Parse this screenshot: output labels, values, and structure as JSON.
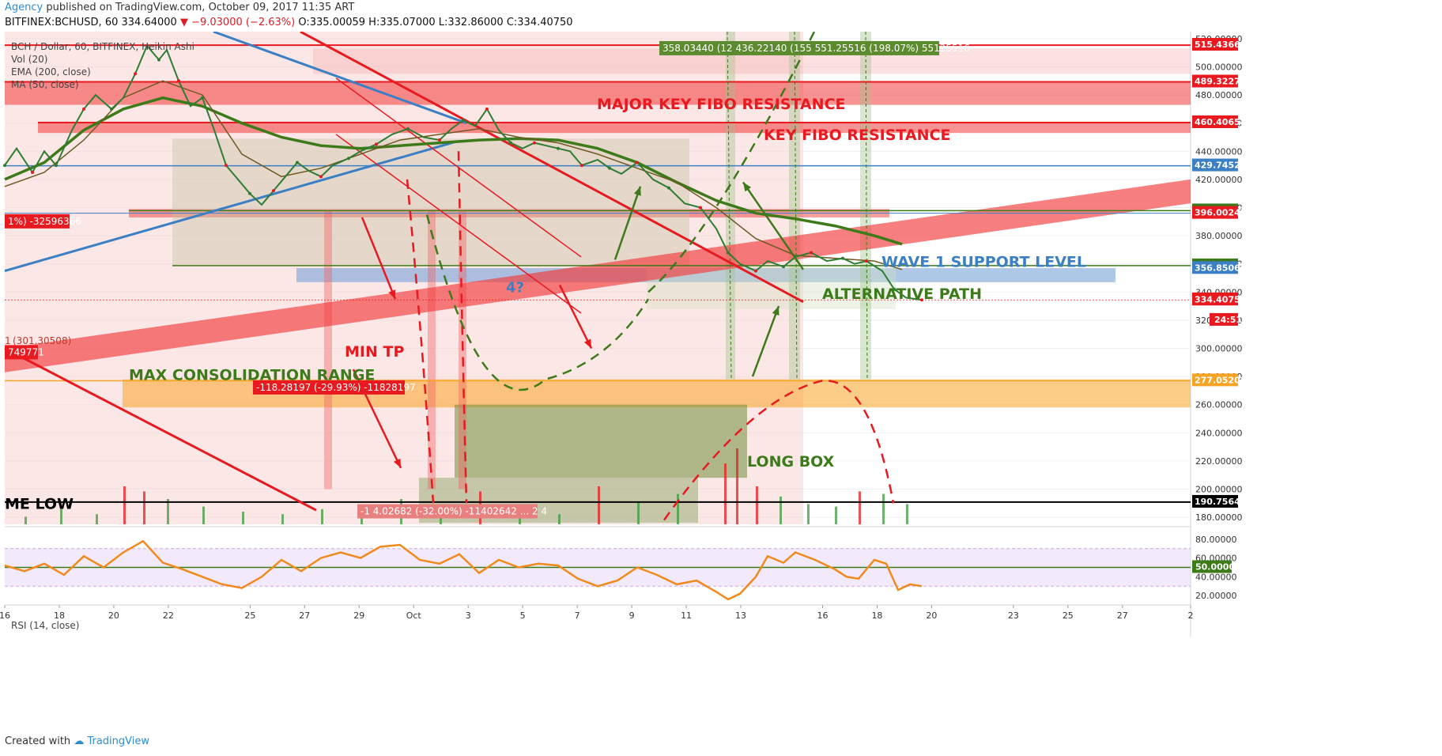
{
  "header": {
    "agency": "Agency",
    "published": "published on TradingView.com, October 09, 2017 11:35 ART",
    "symbol": "BITFINEX:BCHUSD, 60",
    "price": "334.64000",
    "change": "−9.03000 (−2.63%)",
    "ohlc": "O:335.00059 H:335.07000 L:332.86000 C:334.40750"
  },
  "legend": {
    "title": "BCH / Dollar, 60, BITFINEX, Heikin Ashi",
    "vol": "Vol (20)",
    "ema": "EMA (200, close)",
    "ma": "MA (50, close)",
    "rsi": "RSI (14, close)"
  },
  "footer": {
    "created": "Created with",
    "brand": "TradingView"
  },
  "colors": {
    "red": "#e8191f",
    "green": "#3c7a1a",
    "blue": "#3b7fc4",
    "orange": "#f7a425",
    "rsi": "#f08a1c"
  },
  "chart_data": {
    "type": "line",
    "title": "BCH / Dollar, 60, BITFINEX, Heikin Ashi",
    "ylim": [
      175,
      525
    ],
    "y_ticks": [
      "180.00000",
      "200.00000",
      "220.00000",
      "240.00000",
      "260.00000",
      "280.00000",
      "300.00000",
      "320.00000",
      "340.00000",
      "360.00000",
      "380.00000",
      "400.00000",
      "420.00000",
      "440.00000",
      "460.00000",
      "480.00000",
      "500.00000",
      "520.00000"
    ],
    "x_ticks": [
      "16",
      "18",
      "20",
      "22",
      "25",
      "27",
      "29",
      "Oct",
      "3",
      "5",
      "7",
      "9",
      "11",
      "13",
      "16",
      "18",
      "20",
      "23",
      "25",
      "27",
      "2"
    ],
    "rsi_ticks": [
      "80.00000",
      "60.00000",
      "40.00000",
      "20.00000"
    ],
    "price_labels": [
      {
        "v": 515.43664,
        "t": "515.43664",
        "c": "#e8191f"
      },
      {
        "v": 489.32271,
        "t": "489.32271",
        "c": "#e8191f"
      },
      {
        "v": 460.40658,
        "t": "460.40658",
        "c": "#e8191f"
      },
      {
        "v": 429.7452,
        "t": "429.74520",
        "c": "#3b7fc4"
      },
      {
        "v": 397.79662,
        "t": "397.79662",
        "c": "#3c7a1a"
      },
      {
        "v": 396.00247,
        "t": "396.00247",
        "c": "#e8191f"
      },
      {
        "v": 358.77166,
        "t": "358.77166",
        "c": "#3c7a1a"
      },
      {
        "v": 356.85065,
        "t": "356.85065",
        "c": "#3b7fc4"
      },
      {
        "v": 334.64,
        "t": "334.64000",
        "c": "#e8191f"
      },
      {
        "v": 334.4075,
        "t": "334.40750",
        "c": "#e8191f"
      },
      {
        "v": 277.05202,
        "t": "277.05202",
        "c": "#f7a425"
      },
      {
        "v": 190.75646,
        "t": "190.75646",
        "c": "#000000"
      }
    ],
    "countdown": "24:51",
    "rsi_mid_label": "50.0000",
    "price": [
      {
        "x": 16.0,
        "y": 430
      },
      {
        "x": 16.3,
        "y": 442
      },
      {
        "x": 16.7,
        "y": 425
      },
      {
        "x": 17.0,
        "y": 440
      },
      {
        "x": 17.3,
        "y": 430
      },
      {
        "x": 17.7,
        "y": 455
      },
      {
        "x": 18.0,
        "y": 470
      },
      {
        "x": 18.3,
        "y": 480
      },
      {
        "x": 18.7,
        "y": 470
      },
      {
        "x": 19.0,
        "y": 478
      },
      {
        "x": 19.3,
        "y": 495
      },
      {
        "x": 19.6,
        "y": 515
      },
      {
        "x": 19.9,
        "y": 505
      },
      {
        "x": 20.1,
        "y": 512
      },
      {
        "x": 20.4,
        "y": 490
      },
      {
        "x": 20.7,
        "y": 472
      },
      {
        "x": 21.0,
        "y": 478
      },
      {
        "x": 21.3,
        "y": 455
      },
      {
        "x": 21.6,
        "y": 430
      },
      {
        "x": 21.9,
        "y": 420
      },
      {
        "x": 22.2,
        "y": 410
      },
      {
        "x": 22.5,
        "y": 402
      },
      {
        "x": 22.8,
        "y": 412
      },
      {
        "x": 23.1,
        "y": 422
      },
      {
        "x": 23.4,
        "y": 432
      },
      {
        "x": 23.7,
        "y": 426
      },
      {
        "x": 24.0,
        "y": 422
      },
      {
        "x": 24.3,
        "y": 430
      },
      {
        "x": 24.7,
        "y": 435
      },
      {
        "x": 25.0,
        "y": 440
      },
      {
        "x": 25.4,
        "y": 445
      },
      {
        "x": 25.8,
        "y": 452
      },
      {
        "x": 26.2,
        "y": 456
      },
      {
        "x": 26.6,
        "y": 450
      },
      {
        "x": 27.0,
        "y": 448
      },
      {
        "x": 27.3,
        "y": 456
      },
      {
        "x": 27.6,
        "y": 462
      },
      {
        "x": 27.9,
        "y": 458
      },
      {
        "x": 28.2,
        "y": 470
      },
      {
        "x": 28.5,
        "y": 455
      },
      {
        "x": 28.8,
        "y": 446
      },
      {
        "x": 29.1,
        "y": 442
      },
      {
        "x": 29.4,
        "y": 446
      },
      {
        "x": 29.7,
        "y": 444
      },
      {
        "x": 30.0,
        "y": 442
      },
      {
        "x": 30.3,
        "y": 440
      },
      {
        "x": 30.6,
        "y": 430
      },
      {
        "x": 31.0,
        "y": 434
      },
      {
        "x": 31.3,
        "y": 428
      },
      {
        "x": 31.6,
        "y": 424
      },
      {
        "x": 32.0,
        "y": 432
      },
      {
        "x": 32.4,
        "y": 420
      },
      {
        "x": 32.8,
        "y": 414
      },
      {
        "x": 33.2,
        "y": 403
      },
      {
        "x": 33.6,
        "y": 400
      },
      {
        "x": 34.0,
        "y": 385
      },
      {
        "x": 34.3,
        "y": 368
      },
      {
        "x": 34.6,
        "y": 360
      },
      {
        "x": 35.0,
        "y": 355
      },
      {
        "x": 35.3,
        "y": 362
      },
      {
        "x": 35.7,
        "y": 358
      },
      {
        "x": 36.0,
        "y": 365
      },
      {
        "x": 36.4,
        "y": 368
      },
      {
        "x": 36.8,
        "y": 362
      },
      {
        "x": 37.2,
        "y": 364
      },
      {
        "x": 37.5,
        "y": 360
      },
      {
        "x": 37.8,
        "y": 362
      },
      {
        "x": 38.2,
        "y": 355
      },
      {
        "x": 38.5,
        "y": 342
      },
      {
        "x": 38.8,
        "y": 336
      },
      {
        "x": 39.2,
        "y": 334.4
      }
    ],
    "ema200": [
      {
        "x": 16.0,
        "y": 420
      },
      {
        "x": 17.0,
        "y": 432
      },
      {
        "x": 18.0,
        "y": 455
      },
      {
        "x": 19.0,
        "y": 470
      },
      {
        "x": 20.0,
        "y": 478
      },
      {
        "x": 21.0,
        "y": 472
      },
      {
        "x": 22.0,
        "y": 460
      },
      {
        "x": 23.0,
        "y": 450
      },
      {
        "x": 24.0,
        "y": 444
      },
      {
        "x": 25.0,
        "y": 442
      },
      {
        "x": 26.0,
        "y": 444
      },
      {
        "x": 27.0,
        "y": 446
      },
      {
        "x": 28.0,
        "y": 448
      },
      {
        "x": 29.0,
        "y": 449
      },
      {
        "x": 30.0,
        "y": 448
      },
      {
        "x": 31.0,
        "y": 442
      },
      {
        "x": 32.0,
        "y": 432
      },
      {
        "x": 33.0,
        "y": 418
      },
      {
        "x": 34.0,
        "y": 405
      },
      {
        "x": 35.0,
        "y": 396
      },
      {
        "x": 36.0,
        "y": 392
      },
      {
        "x": 37.0,
        "y": 387
      },
      {
        "x": 38.0,
        "y": 380
      },
      {
        "x": 38.7,
        "y": 374
      }
    ],
    "ma50": [
      {
        "x": 16.0,
        "y": 415
      },
      {
        "x": 17.0,
        "y": 425
      },
      {
        "x": 18.0,
        "y": 448
      },
      {
        "x": 19.0,
        "y": 478
      },
      {
        "x": 20.0,
        "y": 490
      },
      {
        "x": 21.0,
        "y": 480
      },
      {
        "x": 22.0,
        "y": 438
      },
      {
        "x": 23.0,
        "y": 422
      },
      {
        "x": 24.0,
        "y": 428
      },
      {
        "x": 25.0,
        "y": 438
      },
      {
        "x": 26.0,
        "y": 448
      },
      {
        "x": 27.0,
        "y": 452
      },
      {
        "x": 28.0,
        "y": 456
      },
      {
        "x": 29.0,
        "y": 450
      },
      {
        "x": 30.0,
        "y": 446
      },
      {
        "x": 31.0,
        "y": 438
      },
      {
        "x": 32.0,
        "y": 428
      },
      {
        "x": 33.0,
        "y": 418
      },
      {
        "x": 34.0,
        "y": 400
      },
      {
        "x": 35.0,
        "y": 378
      },
      {
        "x": 36.0,
        "y": 366
      },
      {
        "x": 37.0,
        "y": 364
      },
      {
        "x": 38.0,
        "y": 362
      },
      {
        "x": 38.7,
        "y": 356
      }
    ],
    "rsi": [
      {
        "x": 16.0,
        "y": 52
      },
      {
        "x": 16.5,
        "y": 46
      },
      {
        "x": 17.0,
        "y": 54
      },
      {
        "x": 17.5,
        "y": 42
      },
      {
        "x": 18.0,
        "y": 62
      },
      {
        "x": 18.5,
        "y": 50
      },
      {
        "x": 19.0,
        "y": 66
      },
      {
        "x": 19.5,
        "y": 78
      },
      {
        "x": 20.0,
        "y": 55
      },
      {
        "x": 20.5,
        "y": 48
      },
      {
        "x": 21.0,
        "y": 40
      },
      {
        "x": 21.5,
        "y": 32
      },
      {
        "x": 22.0,
        "y": 28
      },
      {
        "x": 22.5,
        "y": 40
      },
      {
        "x": 23.0,
        "y": 58
      },
      {
        "x": 23.5,
        "y": 46
      },
      {
        "x": 24.0,
        "y": 60
      },
      {
        "x": 24.5,
        "y": 66
      },
      {
        "x": 25.0,
        "y": 60
      },
      {
        "x": 25.5,
        "y": 72
      },
      {
        "x": 26.0,
        "y": 74
      },
      {
        "x": 26.5,
        "y": 58
      },
      {
        "x": 27.0,
        "y": 54
      },
      {
        "x": 27.5,
        "y": 64
      },
      {
        "x": 28.0,
        "y": 44
      },
      {
        "x": 28.5,
        "y": 58
      },
      {
        "x": 29.0,
        "y": 50
      },
      {
        "x": 29.5,
        "y": 54
      },
      {
        "x": 30.0,
        "y": 52
      },
      {
        "x": 30.5,
        "y": 38
      },
      {
        "x": 31.0,
        "y": 30
      },
      {
        "x": 31.5,
        "y": 36
      },
      {
        "x": 32.0,
        "y": 50
      },
      {
        "x": 32.5,
        "y": 42
      },
      {
        "x": 33.0,
        "y": 32
      },
      {
        "x": 33.5,
        "y": 36
      },
      {
        "x": 34.0,
        "y": 24
      },
      {
        "x": 34.3,
        "y": 16
      },
      {
        "x": 34.6,
        "y": 22
      },
      {
        "x": 35.0,
        "y": 40
      },
      {
        "x": 35.3,
        "y": 62
      },
      {
        "x": 35.7,
        "y": 55
      },
      {
        "x": 36.0,
        "y": 66
      },
      {
        "x": 36.5,
        "y": 58
      },
      {
        "x": 37.0,
        "y": 48
      },
      {
        "x": 37.3,
        "y": 40
      },
      {
        "x": 37.6,
        "y": 38
      },
      {
        "x": 38.0,
        "y": 58
      },
      {
        "x": 38.3,
        "y": 54
      },
      {
        "x": 38.6,
        "y": 26
      },
      {
        "x": 38.9,
        "y": 32
      },
      {
        "x": 39.2,
        "y": 30
      }
    ],
    "volume": [
      {
        "x": 16.5,
        "y": 6
      },
      {
        "x": 17.4,
        "y": 12
      },
      {
        "x": 18.3,
        "y": 8
      },
      {
        "x": 19.0,
        "y": 30
      },
      {
        "x": 19.5,
        "y": 26
      },
      {
        "x": 20.1,
        "y": 20
      },
      {
        "x": 21.0,
        "y": 14
      },
      {
        "x": 22.0,
        "y": 10
      },
      {
        "x": 23.0,
        "y": 8
      },
      {
        "x": 24.0,
        "y": 12
      },
      {
        "x": 25.0,
        "y": 8
      },
      {
        "x": 26.0,
        "y": 20
      },
      {
        "x": 27.0,
        "y": 10
      },
      {
        "x": 28.0,
        "y": 26
      },
      {
        "x": 29.0,
        "y": 12
      },
      {
        "x": 30.0,
        "y": 8
      },
      {
        "x": 31.0,
        "y": 30
      },
      {
        "x": 32.0,
        "y": 18
      },
      {
        "x": 33.0,
        "y": 24
      },
      {
        "x": 34.2,
        "y": 48
      },
      {
        "x": 34.5,
        "y": 60
      },
      {
        "x": 35.0,
        "y": 30
      },
      {
        "x": 35.6,
        "y": 22
      },
      {
        "x": 36.3,
        "y": 16
      },
      {
        "x": 37.0,
        "y": 14
      },
      {
        "x": 37.6,
        "y": 26
      },
      {
        "x": 38.2,
        "y": 24
      },
      {
        "x": 38.8,
        "y": 16
      }
    ],
    "annotations": {
      "major": "MAJOR KEY FIBO RESISTANCE",
      "key": "KEY FIBO RESISTANCE",
      "wave1": "WAVE 1 SUPPORT LEVEL",
      "alt": "ALTERNATIVE PATH",
      "min_tp": "MIN TP",
      "max_range": "MAX CONSOLIDATION RANGE",
      "long_box": "LONG BOX",
      "me_low": "ME LOW",
      "wave4": "4?",
      "fib1": "(301.30508)",
      "fib1_prefix": "1",
      "neg_flag": "1%) -32596366",
      "neg_flag2": "749771",
      "measure_red": "-118.28197 (-29.93%) -11828197",
      "measure_green": "358.03440 (12 436.22140 (155 551.25516 (198.07%) 55125516",
      "measure_bottom": "-1 4.02682 (-32.00%) -11402642 ... 2 4"
    }
  }
}
